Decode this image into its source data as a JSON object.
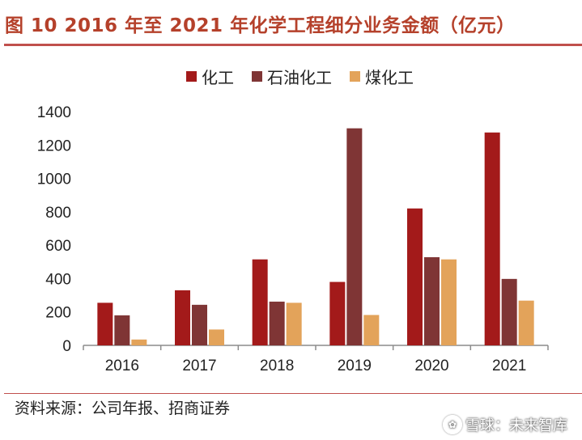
{
  "header": {
    "title": "图 10 2016 年至 2021 年化学工程细分业务金额（亿元）"
  },
  "footer": {
    "source": "资料来源：公司年报、招商证券",
    "watermark": "雪球：未来智库"
  },
  "colors": {
    "title": "#b5412b",
    "rule": "#c0504d"
  },
  "chart_data": {
    "type": "bar",
    "categories": [
      "2016",
      "2017",
      "2018",
      "2019",
      "2020",
      "2021"
    ],
    "series": [
      {
        "name": "化工",
        "color": "#a31a1a",
        "values": [
          255,
          330,
          515,
          380,
          820,
          1275
        ]
      },
      {
        "name": "石油化工",
        "color": "#7f3535",
        "values": [
          180,
          243,
          262,
          1300,
          528,
          398
        ]
      },
      {
        "name": "煤化工",
        "color": "#e3a35a",
        "values": [
          35,
          95,
          255,
          182,
          515,
          268
        ]
      }
    ],
    "yticks": [
      "0",
      "200",
      "400",
      "600",
      "800",
      "1000",
      "1200",
      "1400"
    ],
    "ylim": [
      0,
      1400
    ],
    "legend_position": "top-center",
    "grid": false
  }
}
